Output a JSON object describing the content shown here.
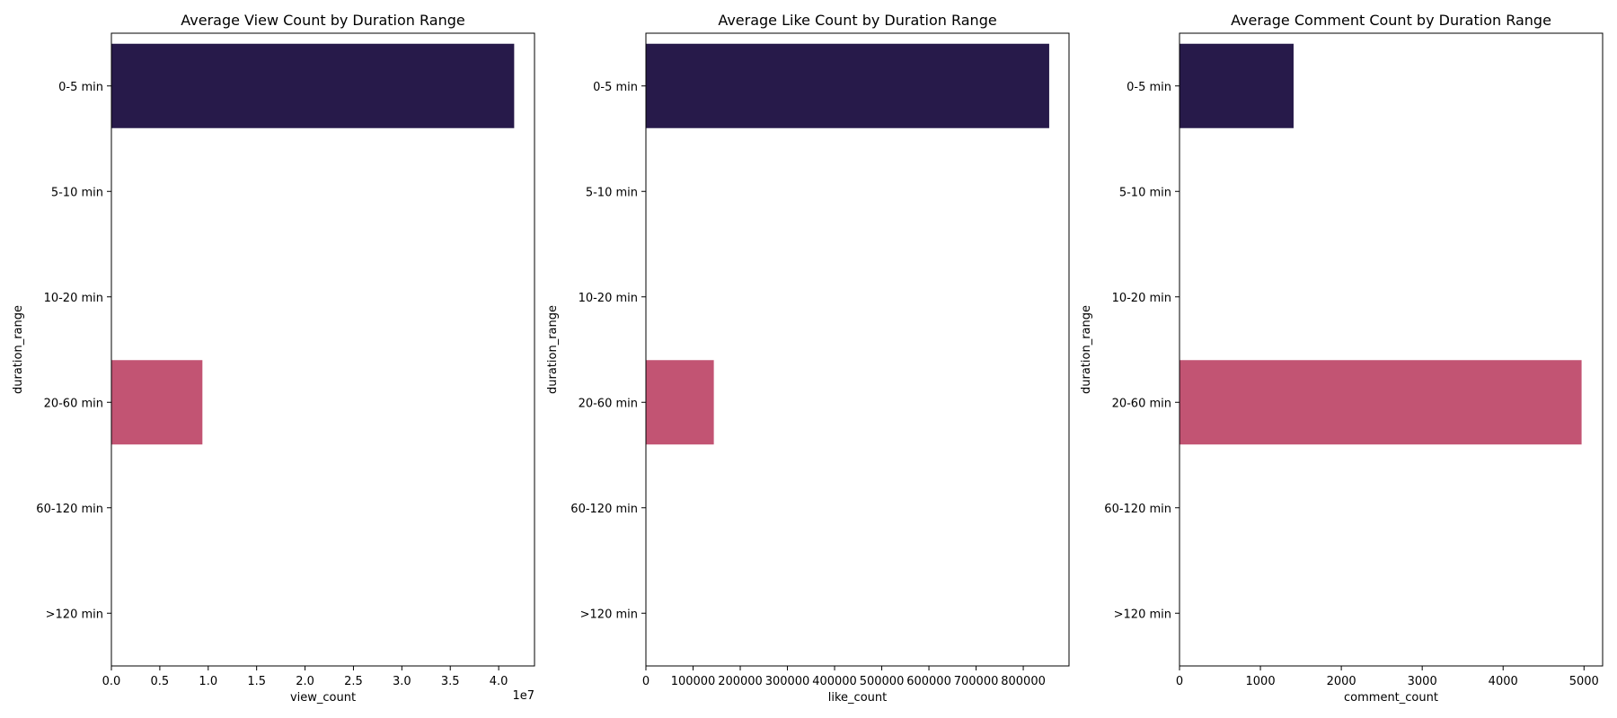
{
  "chart_data": [
    {
      "type": "bar",
      "orientation": "horizontal",
      "title": "Average View Count by Duration Range",
      "xlabel": "view_count",
      "ylabel": "duration_range",
      "categories": [
        "0-5 min",
        "5-10 min",
        "10-20 min",
        "20-60 min",
        "60-120 min",
        ">120 min"
      ],
      "values": [
        41600000,
        null,
        null,
        9400000,
        null,
        null
      ],
      "bar_colors": [
        "#271a4a",
        null,
        null,
        "#c25473",
        null,
        null
      ],
      "xlim": [
        0,
        43700000
      ],
      "xticks": [
        0,
        5000000,
        10000000,
        15000000,
        20000000,
        25000000,
        30000000,
        35000000,
        40000000
      ],
      "xtick_labels": [
        "0.0",
        "0.5",
        "1.0",
        "1.5",
        "2.0",
        "2.5",
        "3.0",
        "3.5",
        "4.0"
      ],
      "x_offset_label": "1e7",
      "grid": false
    },
    {
      "type": "bar",
      "orientation": "horizontal",
      "title": "Average Like Count by Duration Range",
      "xlabel": "like_count",
      "ylabel": "duration_range",
      "categories": [
        "0-5 min",
        "5-10 min",
        "10-20 min",
        "20-60 min",
        "60-120 min",
        ">120 min"
      ],
      "values": [
        855000,
        null,
        null,
        144000,
        null,
        null
      ],
      "bar_colors": [
        "#271a4a",
        null,
        null,
        "#c25473",
        null,
        null
      ],
      "xlim": [
        0,
        897000
      ],
      "xticks": [
        0,
        100000,
        200000,
        300000,
        400000,
        500000,
        600000,
        700000,
        800000
      ],
      "xtick_labels": [
        "0",
        "100000",
        "200000",
        "300000",
        "400000",
        "500000",
        "600000",
        "700000",
        "800000"
      ],
      "grid": false
    },
    {
      "type": "bar",
      "orientation": "horizontal",
      "title": "Average Comment Count by Duration Range",
      "xlabel": "comment_count",
      "ylabel": "duration_range",
      "categories": [
        "0-5 min",
        "5-10 min",
        "10-20 min",
        "20-60 min",
        "60-120 min",
        ">120 min"
      ],
      "values": [
        1410,
        null,
        null,
        4970,
        null,
        null
      ],
      "bar_colors": [
        "#271a4a",
        null,
        null,
        "#c25473",
        null,
        null
      ],
      "xlim": [
        0,
        5230
      ],
      "xticks": [
        0,
        1000,
        2000,
        3000,
        4000,
        5000
      ],
      "xtick_labels": [
        "0",
        "1000",
        "2000",
        "3000",
        "4000",
        "5000"
      ],
      "grid": false
    }
  ]
}
